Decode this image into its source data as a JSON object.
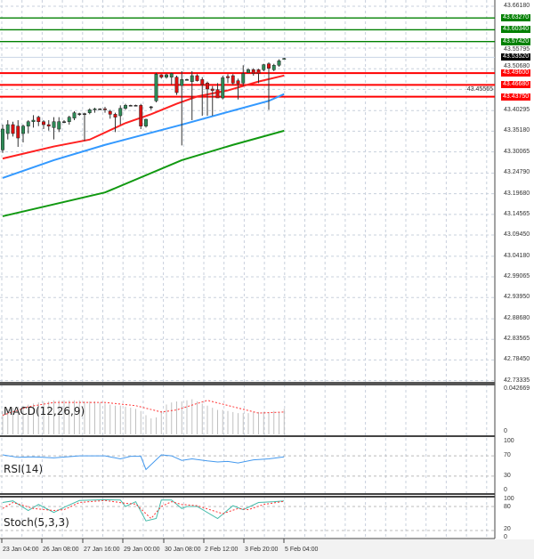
{
  "colors": {
    "support": "#ff0000",
    "resistance": "#008000",
    "current": "#000000",
    "bull": "#2e8b57",
    "bear": "#dd1111",
    "ma_fast": "#ff2020",
    "ma_mid": "#3399ff",
    "ma_slow": "#119911",
    "rsi": "#4499ee",
    "stoch_main": "#44bbaa",
    "stoch_signal": "#ff3333",
    "macd_hist": "#c0c0c0",
    "macd_signal": "#ff3333"
  },
  "price_axis": {
    "labels": [
      "43.66180",
      "43.55795",
      "43.50680",
      "43.45565",
      "43.40295",
      "43.35180",
      "43.30065",
      "43.24790",
      "43.19680",
      "43.14565",
      "43.09450",
      "43.04180",
      "42.99065",
      "42.93950",
      "42.88680",
      "42.83565",
      "42.78450",
      "42.73335"
    ]
  },
  "levels": {
    "resistance": [
      "43.63270",
      "43.60340",
      "43.57420"
    ],
    "current": "43.53520",
    "support": [
      "43.49600",
      "43.46680",
      "43.43750"
    ]
  },
  "time_axis": {
    "labels": [
      "23 Jan 04:00",
      "26 Jan 08:00",
      "27 Jan 16:00",
      "29 Jan 00:00",
      "30 Jan 08:00",
      "2 Feb 12:00",
      "3 Feb 20:00",
      "5 Feb 04:00"
    ]
  },
  "chart_data": {
    "type": "candlestick",
    "ohlc": [
      [
        43.3056,
        43.3682,
        43.2982,
        43.3571
      ],
      [
        43.3461,
        43.3792,
        43.3314,
        43.3682
      ],
      [
        43.3682,
        43.3755,
        43.3387,
        43.3461
      ],
      [
        43.3645,
        43.3792,
        43.313,
        43.335
      ],
      [
        43.3461,
        43.3682,
        43.324,
        43.3645
      ],
      [
        43.3645,
        43.3792,
        43.3461,
        43.3755
      ],
      [
        43.3755,
        43.3917,
        43.3608,
        43.3792
      ],
      [
        43.3866,
        43.3902,
        43.3645,
        43.3755
      ],
      [
        43.3755,
        43.3792,
        43.3571,
        43.3682
      ],
      [
        43.3682,
        43.3792,
        43.3534,
        43.3645
      ],
      [
        43.3608,
        43.3866,
        43.3314,
        43.3755
      ],
      [
        43.3571,
        43.3866,
        43.3498,
        43.3755
      ],
      [
        43.3755,
        43.3792,
        43.3718,
        43.3755
      ],
      [
        43.3755,
        43.3902,
        43.3682,
        43.3866
      ],
      [
        43.3844,
        43.4013,
        43.3792,
        43.3976
      ],
      [
        43.3954,
        43.3976,
        43.3902,
        43.3954
      ],
      [
        43.3954,
        43.3976,
        43.3277,
        43.3954
      ],
      [
        43.3976,
        43.4086,
        43.3939,
        43.405
      ],
      [
        43.405,
        43.4101,
        43.3976,
        43.4072
      ],
      [
        43.4072,
        43.4086,
        43.405,
        43.4072
      ],
      [
        43.4072,
        43.4123,
        43.3976,
        43.405
      ],
      [
        43.4013,
        43.405,
        43.3829,
        43.3939
      ],
      [
        43.3939,
        43.3976,
        43.3498,
        43.3866
      ],
      [
        43.3902,
        43.416,
        43.3682,
        43.4086
      ],
      [
        43.4086,
        43.4197,
        43.405,
        43.416
      ],
      [
        43.416,
        43.4175,
        43.4145,
        43.416
      ],
      [
        43.416,
        43.4175,
        43.4145,
        43.416
      ],
      [
        43.416,
        43.4197,
        43.3571,
        43.3645
      ],
      [
        43.3645,
        43.3829,
        43.3608,
        43.3814
      ],
      [
        43.4123,
        43.4145,
        43.405,
        43.4123
      ],
      [
        43.427,
        43.497,
        43.4234,
        43.4933
      ],
      [
        43.4918,
        43.4933,
        43.4822,
        43.4859
      ],
      [
        43.4859,
        43.4948,
        43.4822,
        43.4918
      ],
      [
        43.4859,
        43.497,
        43.4675,
        43.4948
      ],
      [
        43.4859,
        43.4896,
        43.4418,
        43.4476
      ],
      [
        43.4653,
        43.5006,
        43.3166,
        43.48
      ],
      [
        43.48,
        43.4822,
        43.4786,
        43.48
      ],
      [
        43.4749,
        43.5006,
        43.3792,
        43.4896
      ],
      [
        43.4896,
        43.4933,
        43.4749,
        43.4771
      ],
      [
        43.48,
        43.4859,
        43.3902,
        43.4675
      ],
      [
        43.4712,
        43.4749,
        43.3902,
        43.4565
      ],
      [
        43.4565,
        43.4638,
        43.3902,
        43.4528
      ],
      [
        43.455,
        43.4712,
        43.4344,
        43.4344
      ],
      [
        43.4344,
        43.4896,
        43.4307,
        43.4844
      ],
      [
        43.4874,
        43.4933,
        43.4712,
        43.4844
      ],
      [
        43.4896,
        43.4933,
        43.4675,
        43.4712
      ],
      [
        43.4771,
        43.4822,
        43.4307,
        43.4697
      ],
      [
        43.4712,
        43.5154,
        43.4638,
        43.4948
      ],
      [
        43.497,
        43.508,
        43.497,
        43.5043
      ],
      [
        43.5043,
        43.508,
        43.4896,
        43.4948
      ],
      [
        43.5043,
        43.5065,
        43.4712,
        43.4948
      ],
      [
        43.5043,
        43.519,
        43.5006,
        43.5168
      ],
      [
        43.519,
        43.5227,
        43.405,
        43.508
      ],
      [
        43.5043,
        43.519,
        43.5006,
        43.5154
      ],
      [
        43.5154,
        43.5301,
        43.5117,
        43.5264
      ],
      [
        43.5301,
        43.5338,
        43.5301,
        43.5323
      ]
    ],
    "ma_fast": [
      [
        0,
        43.284
      ],
      [
        10,
        43.314
      ],
      [
        17,
        43.331
      ],
      [
        24,
        43.372
      ],
      [
        29,
        43.394
      ],
      [
        34,
        43.42
      ],
      [
        38,
        43.438
      ],
      [
        44,
        43.453
      ],
      [
        50,
        43.475
      ],
      [
        55,
        43.49
      ]
    ],
    "ma_mid": [
      [
        0,
        43.236
      ],
      [
        10,
        43.28
      ],
      [
        20,
        43.318
      ],
      [
        35,
        43.368
      ],
      [
        45,
        43.403
      ],
      [
        52,
        43.427
      ],
      [
        55,
        43.444
      ]
    ],
    "ma_slow": [
      [
        0,
        43.141
      ],
      [
        20,
        43.2
      ],
      [
        35,
        43.28
      ],
      [
        45,
        43.318
      ],
      [
        55,
        43.353
      ]
    ],
    "macd": {
      "title": "MACD(12,26,9)",
      "max_label": "0.042669",
      "zero_label": "0",
      "max": 0.042669,
      "histogram": [
        0.022,
        0.024,
        0.025,
        0.026,
        0.027,
        0.028,
        0.029,
        0.03,
        0.031,
        0.031,
        0.032,
        0.032,
        0.032,
        0.032,
        0.032,
        0.032,
        0.031,
        0.031,
        0.031,
        0.03,
        0.029,
        0.028,
        0.027,
        0.027,
        0.026,
        0.025,
        0.024,
        0.022,
        0.018,
        0.015,
        0.016,
        0.022,
        0.028,
        0.03,
        0.031,
        0.031,
        0.032,
        0.033,
        0.031,
        0.029,
        0.027,
        0.025,
        0.023,
        0.023,
        0.022,
        0.021,
        0.02,
        0.02,
        0.02,
        0.021,
        0.021,
        0.021,
        0.021,
        0.022,
        0.021,
        0.024
      ],
      "signal": [
        [
          0,
          0.018
        ],
        [
          5,
          0.026
        ],
        [
          10,
          0.03
        ],
        [
          20,
          0.03
        ],
        [
          26,
          0.027
        ],
        [
          31,
          0.021
        ],
        [
          34,
          0.023
        ],
        [
          40,
          0.032
        ],
        [
          45,
          0.026
        ],
        [
          50,
          0.02
        ],
        [
          55,
          0.021
        ]
      ]
    },
    "rsi": {
      "title": "RSI(14)",
      "levels": [
        "100",
        "70",
        "30",
        "0"
      ],
      "values": [
        [
          0,
          72
        ],
        [
          3,
          67
        ],
        [
          6,
          68
        ],
        [
          10,
          66
        ],
        [
          15,
          70
        ],
        [
          20,
          70
        ],
        [
          23,
          64
        ],
        [
          25,
          69
        ],
        [
          27,
          69
        ],
        [
          28,
          43
        ],
        [
          31,
          72
        ],
        [
          33,
          70
        ],
        [
          35,
          61
        ],
        [
          37,
          64
        ],
        [
          40,
          60
        ],
        [
          42,
          58
        ],
        [
          44,
          59
        ],
        [
          46,
          56
        ],
        [
          49,
          62
        ],
        [
          52,
          64
        ],
        [
          55,
          68
        ]
      ]
    },
    "stoch": {
      "title": "Stoch(5,3,3)",
      "levels": [
        "100",
        "80",
        "20",
        "0"
      ],
      "main": [
        [
          0,
          90
        ],
        [
          2,
          94
        ],
        [
          5,
          70
        ],
        [
          7,
          85
        ],
        [
          10,
          65
        ],
        [
          12,
          78
        ],
        [
          15,
          95
        ],
        [
          20,
          97
        ],
        [
          23,
          96
        ],
        [
          24,
          80
        ],
        [
          26,
          92
        ],
        [
          28,
          44
        ],
        [
          30,
          50
        ],
        [
          31,
          96
        ],
        [
          33,
          96
        ],
        [
          35,
          75
        ],
        [
          36,
          80
        ],
        [
          38,
          80
        ],
        [
          42,
          50
        ],
        [
          45,
          82
        ],
        [
          47,
          72
        ],
        [
          50,
          90
        ],
        [
          53,
          92
        ],
        [
          55,
          94
        ]
      ],
      "signal": [
        [
          0,
          75
        ],
        [
          2,
          90
        ],
        [
          6,
          75
        ],
        [
          10,
          70
        ],
        [
          12,
          72
        ],
        [
          15,
          90
        ],
        [
          20,
          95
        ],
        [
          24,
          88
        ],
        [
          26,
          86
        ],
        [
          29,
          50
        ],
        [
          31,
          80
        ],
        [
          33,
          92
        ],
        [
          35,
          85
        ],
        [
          38,
          82
        ],
        [
          43,
          62
        ],
        [
          46,
          75
        ],
        [
          48,
          72
        ],
        [
          51,
          85
        ],
        [
          55,
          93
        ]
      ]
    }
  }
}
